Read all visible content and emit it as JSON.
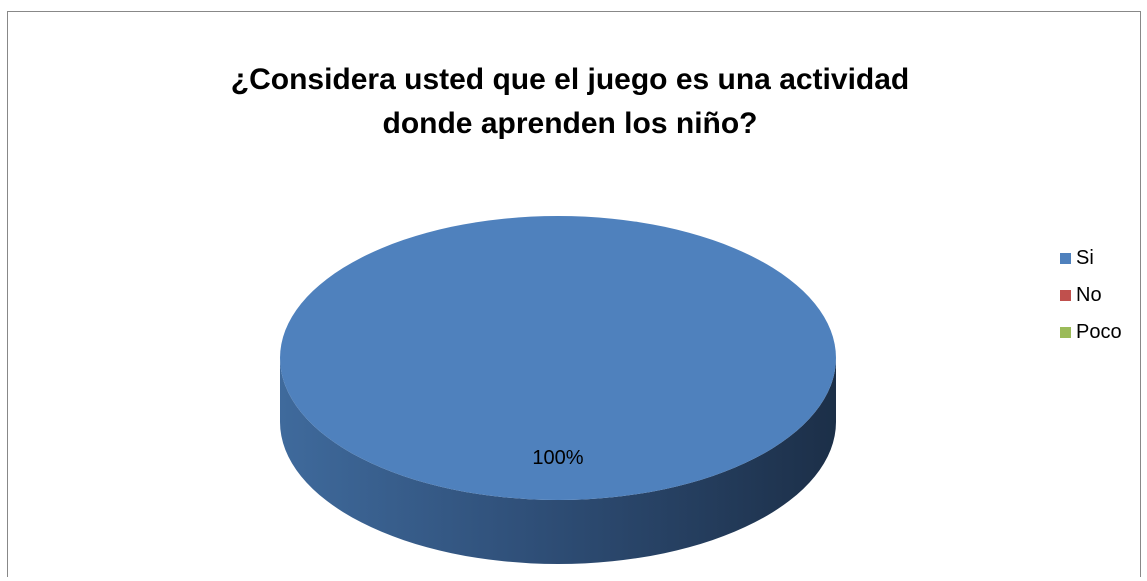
{
  "chart_data": {
    "type": "pie",
    "title": "¿Considera usted que el juego es una actividad\ndonde aprenden los niño?",
    "categories": [
      "Si",
      "No",
      "Poco"
    ],
    "values": [
      100,
      0,
      0
    ],
    "data_labels": [
      "100%"
    ],
    "colors": [
      "#4f81bd",
      "#c0504d",
      "#9bbb59"
    ],
    "style": "3d",
    "legend": {
      "position": "right",
      "items": [
        {
          "label": "Si",
          "color": "#4f81bd"
        },
        {
          "label": "No",
          "color": "#c0504d"
        },
        {
          "label": "Poco",
          "color": "#9bbb59"
        }
      ]
    }
  }
}
